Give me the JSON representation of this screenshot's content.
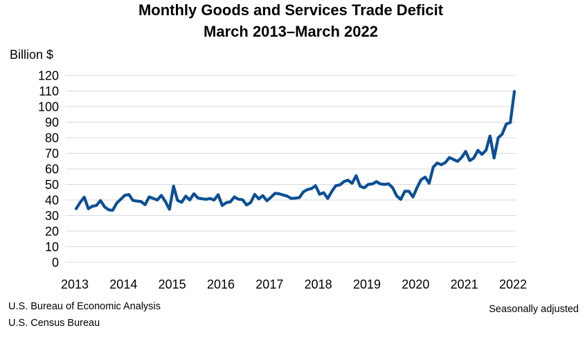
{
  "chart_data": {
    "type": "line",
    "title": "Monthly Goods and Services Trade Deficit",
    "subtitle": "March 2013–March 2022",
    "ylabel": "Billion $",
    "xlabel": "",
    "ylim": [
      0,
      120
    ],
    "yticks": [
      0,
      10,
      20,
      30,
      40,
      50,
      60,
      70,
      80,
      90,
      100,
      110,
      120
    ],
    "xticks": [
      "2013",
      "2014",
      "2015",
      "2016",
      "2017",
      "2018",
      "2019",
      "2020",
      "2021",
      "2022"
    ],
    "x_range": [
      "2013-03",
      "2022-03"
    ],
    "grid": "horizontal",
    "legend": "none",
    "line_color": "#0b4f96",
    "series": [
      {
        "x_start": "2013-03",
        "frequency": "monthly",
        "values": [
          34.4,
          38.5,
          41.8,
          34.4,
          36.0,
          36.5,
          39.7,
          35.6,
          33.7,
          33.4,
          38.0,
          40.5,
          43.0,
          43.5,
          39.7,
          39.3,
          39.0,
          37.0,
          42.0,
          41.0,
          40.0,
          43.0,
          39.0,
          34.0,
          48.9,
          39.7,
          38.5,
          42.5,
          40.0,
          44.0,
          41.3,
          40.8,
          40.4,
          41.0,
          40.0,
          43.4,
          36.5,
          38.3,
          38.8,
          42.0,
          40.5,
          40.2,
          36.8,
          38.3,
          43.6,
          40.7,
          42.8,
          39.5,
          41.7,
          44.3,
          44.0,
          43.2,
          42.5,
          41.0,
          41.2,
          41.5,
          45.2,
          46.7,
          47.3,
          49.2,
          43.7,
          44.7,
          41.0,
          45.5,
          49.2,
          49.7,
          51.8,
          52.7,
          50.7,
          55.6,
          48.8,
          47.8,
          50.0,
          50.3,
          51.8,
          50.3,
          50.0,
          50.4,
          47.8,
          42.6,
          40.4,
          45.6,
          45.6,
          41.9,
          47.8,
          53.0,
          54.7,
          50.7,
          61.1,
          63.8,
          62.6,
          64.1,
          67.3,
          66.0,
          64.8,
          67.3,
          71.2,
          65.3,
          67.0,
          71.9,
          69.3,
          71.9,
          81.1,
          67.0,
          79.9,
          82.3,
          88.8,
          89.7,
          109.7
        ]
      }
    ]
  },
  "footer": {
    "source_1": "U.S. Bureau of Economic Analysis",
    "source_2": "U.S. Census Bureau",
    "note": "Seasonally adjusted"
  }
}
